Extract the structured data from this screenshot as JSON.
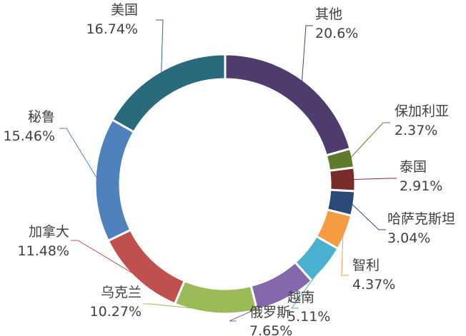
{
  "chart_data": {
    "type": "pie",
    "variant": "donut",
    "title": "",
    "legend": "none",
    "series": [
      {
        "name": "其他",
        "value": 20.6,
        "label": "20.6%",
        "color": "#4f3b6e"
      },
      {
        "name": "保加利亚",
        "value": 2.37,
        "label": "2.37%",
        "color": "#5e7a2d"
      },
      {
        "name": "泰国",
        "value": 2.91,
        "label": "2.91%",
        "color": "#7b2c2a"
      },
      {
        "name": "哈萨克斯坦",
        "value": 3.04,
        "label": "3.04%",
        "color": "#2c4a78"
      },
      {
        "name": "智利",
        "value": 4.37,
        "label": "4.37%",
        "color": "#f59b42"
      },
      {
        "name": "越南",
        "value": 5.11,
        "label": "5.11%",
        "color": "#49b0cf"
      },
      {
        "name": "俄罗斯",
        "value": 7.65,
        "label": "7.65%",
        "color": "#8467ad"
      },
      {
        "name": "乌克兰",
        "value": 10.27,
        "label": "10.27%",
        "color": "#9bbb59"
      },
      {
        "name": "加拿大",
        "value": 11.48,
        "label": "11.48%",
        "color": "#c0504d"
      },
      {
        "name": "秘鲁",
        "value": 15.46,
        "label": "15.46%",
        "color": "#4f81bd"
      },
      {
        "name": "美国",
        "value": 16.74,
        "label": "16.74%",
        "color": "#2a6a7d"
      }
    ]
  }
}
